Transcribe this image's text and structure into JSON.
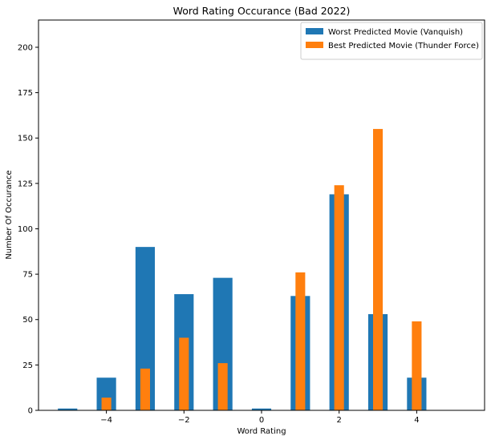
{
  "chart_data": {
    "type": "bar",
    "title": "Word Rating Occurance (Bad 2022)",
    "xlabel": "Word Rating",
    "ylabel": "Number Of Occurance",
    "xlim": [
      -5.75,
      5.75
    ],
    "ylim": [
      0,
      215
    ],
    "xticks": [
      -4,
      -2,
      0,
      2,
      4
    ],
    "yticks": [
      0,
      25,
      50,
      75,
      100,
      125,
      150,
      175,
      200
    ],
    "grid": false,
    "legend_position": "top-right",
    "series": [
      {
        "name": "Worst Predicted Movie (Vanquish)",
        "color": "#1f77b4",
        "bar_width": 0.5,
        "x": [
          -5,
          -4,
          -3,
          -2,
          -1,
          0,
          1,
          2,
          3,
          4
        ],
        "values": [
          1,
          18,
          90,
          64,
          73,
          1,
          63,
          119,
          53,
          18
        ]
      },
      {
        "name": "Best Predicted Movie (Thunder Force)",
        "color": "#ff7f0e",
        "bar_width": 0.25,
        "x": [
          -4,
          -3,
          -2,
          -1,
          1,
          2,
          3,
          4
        ],
        "values": [
          7,
          23,
          40,
          26,
          76,
          124,
          155,
          49
        ]
      }
    ]
  }
}
